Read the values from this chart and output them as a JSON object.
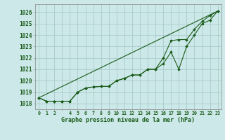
{
  "title": "Graphe pression niveau de la mer (hPa)",
  "bg_color": "#cce8e8",
  "grid_color": "#aacccc",
  "line_color": "#1a5c1a",
  "marker_color": "#1a5c1a",
  "xlim": [
    -0.5,
    23.5
  ],
  "ylim": [
    1017.5,
    1026.7
  ],
  "yticks": [
    1018,
    1019,
    1020,
    1021,
    1022,
    1023,
    1024,
    1025,
    1026
  ],
  "main_series": {
    "x": [
      0,
      1,
      2,
      3,
      4,
      5,
      6,
      7,
      8,
      9,
      10,
      11,
      12,
      13,
      14,
      15,
      16,
      17,
      18,
      19,
      20,
      21,
      22,
      23
    ],
    "y": [
      1018.5,
      1018.2,
      1018.2,
      1018.2,
      1018.2,
      1019.0,
      1019.35,
      1019.45,
      1019.5,
      1019.5,
      1020.0,
      1020.2,
      1020.5,
      1020.5,
      1021.0,
      1021.0,
      1021.5,
      1022.5,
      1021.0,
      1023.0,
      1024.0,
      1025.0,
      1025.3,
      1026.1
    ]
  },
  "line2": {
    "x": [
      0,
      1,
      2,
      3,
      4,
      5,
      6,
      7,
      8,
      9,
      10,
      11,
      12,
      13,
      14,
      15,
      16,
      17,
      18,
      19,
      20,
      21,
      22,
      23
    ],
    "y": [
      1018.5,
      1018.2,
      1018.2,
      1018.2,
      1018.2,
      1019.0,
      1019.35,
      1019.45,
      1019.5,
      1019.5,
      1020.0,
      1020.2,
      1020.5,
      1020.5,
      1021.0,
      1021.0,
      1022.0,
      1023.5,
      1023.6,
      1023.6,
      1024.5,
      1025.2,
      1025.7,
      1026.1
    ]
  },
  "line3": {
    "x": [
      0,
      23
    ],
    "y": [
      1018.5,
      1026.1
    ]
  }
}
